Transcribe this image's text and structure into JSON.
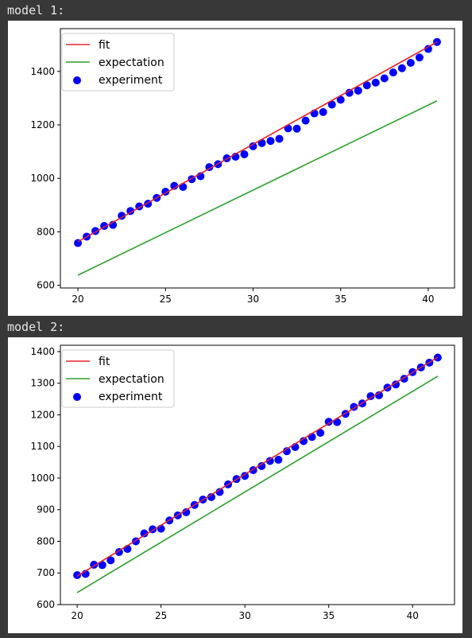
{
  "outputs": [
    {
      "label": "model 1:"
    },
    {
      "label": "model 2:"
    }
  ],
  "chart_data": [
    {
      "type": "scatter",
      "title": "",
      "xlabel": "",
      "ylabel": "",
      "xlim": [
        19.0,
        41.5
      ],
      "ylim": [
        590,
        1560
      ],
      "xticks": [
        20,
        25,
        30,
        35,
        40
      ],
      "yticks": [
        600,
        800,
        1000,
        1200,
        1400
      ],
      "grid": false,
      "legend_position": "top-left",
      "colors": {
        "fit": "#e8272b",
        "expectation": "#2ca02c",
        "experiment": "#0000ff"
      },
      "legend": [
        "fit",
        "expectation",
        "experiment"
      ],
      "series": [
        {
          "name": "fit",
          "kind": "line",
          "x": [
            20,
            40.5
          ],
          "y": [
            763,
            1510
          ]
        },
        {
          "name": "expectation",
          "kind": "line",
          "x": [
            20,
            40.5
          ],
          "y": [
            638,
            1290
          ]
        },
        {
          "name": "experiment",
          "kind": "scatter",
          "x": [
            20.0,
            20.5,
            21.0,
            21.5,
            22.0,
            22.5,
            23.0,
            23.5,
            24.0,
            24.5,
            25.0,
            25.5,
            26.0,
            26.5,
            27.0,
            27.5,
            28.0,
            28.5,
            29.0,
            29.5,
            30.0,
            30.5,
            31.0,
            31.5,
            32.0,
            32.5,
            33.0,
            33.5,
            34.0,
            34.5,
            35.0,
            35.5,
            36.0,
            36.5,
            37.0,
            37.5,
            38.0,
            38.5,
            39.0,
            39.5,
            40.0,
            40.5
          ],
          "y": [
            758,
            782,
            803,
            822,
            826,
            860,
            878,
            895,
            905,
            927,
            950,
            972,
            968,
            997,
            1008,
            1042,
            1053,
            1075,
            1081,
            1090,
            1120,
            1132,
            1140,
            1148,
            1187,
            1186,
            1216,
            1243,
            1248,
            1276,
            1294,
            1320,
            1328,
            1348,
            1358,
            1374,
            1396,
            1412,
            1432,
            1452,
            1484,
            1510
          ]
        }
      ]
    },
    {
      "type": "scatter",
      "title": "",
      "xlabel": "",
      "ylabel": "",
      "xlim": [
        19.0,
        42.5
      ],
      "ylim": [
        600,
        1420
      ],
      "xticks": [
        20,
        25,
        30,
        35,
        40
      ],
      "yticks": [
        600,
        700,
        800,
        900,
        1000,
        1100,
        1200,
        1300,
        1400
      ],
      "grid": false,
      "legend_position": "top-left",
      "colors": {
        "fit": "#e8272b",
        "expectation": "#2ca02c",
        "experiment": "#0000ff"
      },
      "legend": [
        "fit",
        "expectation",
        "experiment"
      ],
      "series": [
        {
          "name": "fit",
          "kind": "line",
          "x": [
            20,
            41.5
          ],
          "y": [
            690,
            1382
          ]
        },
        {
          "name": "expectation",
          "kind": "line",
          "x": [
            20,
            41.5
          ],
          "y": [
            638,
            1322
          ]
        },
        {
          "name": "experiment",
          "kind": "scatter",
          "x": [
            20.0,
            20.5,
            21.0,
            21.5,
            22.0,
            22.5,
            23.0,
            23.5,
            24.0,
            24.5,
            25.0,
            25.5,
            26.0,
            26.5,
            27.0,
            27.5,
            28.0,
            28.5,
            29.0,
            29.5,
            30.0,
            30.5,
            31.0,
            31.5,
            32.0,
            32.5,
            33.0,
            33.5,
            34.0,
            34.5,
            35.0,
            35.5,
            36.0,
            36.5,
            37.0,
            37.5,
            38.0,
            38.5,
            39.0,
            39.5,
            40.0,
            40.5,
            41.0,
            41.5
          ],
          "y": [
            693,
            697,
            726,
            725,
            740,
            766,
            776,
            800,
            825,
            838,
            840,
            866,
            882,
            892,
            915,
            932,
            940,
            956,
            980,
            997,
            1007,
            1025,
            1038,
            1054,
            1058,
            1085,
            1098,
            1117,
            1130,
            1143,
            1178,
            1177,
            1203,
            1225,
            1236,
            1259,
            1262,
            1286,
            1296,
            1314,
            1335,
            1350,
            1365,
            1381
          ]
        }
      ]
    }
  ]
}
